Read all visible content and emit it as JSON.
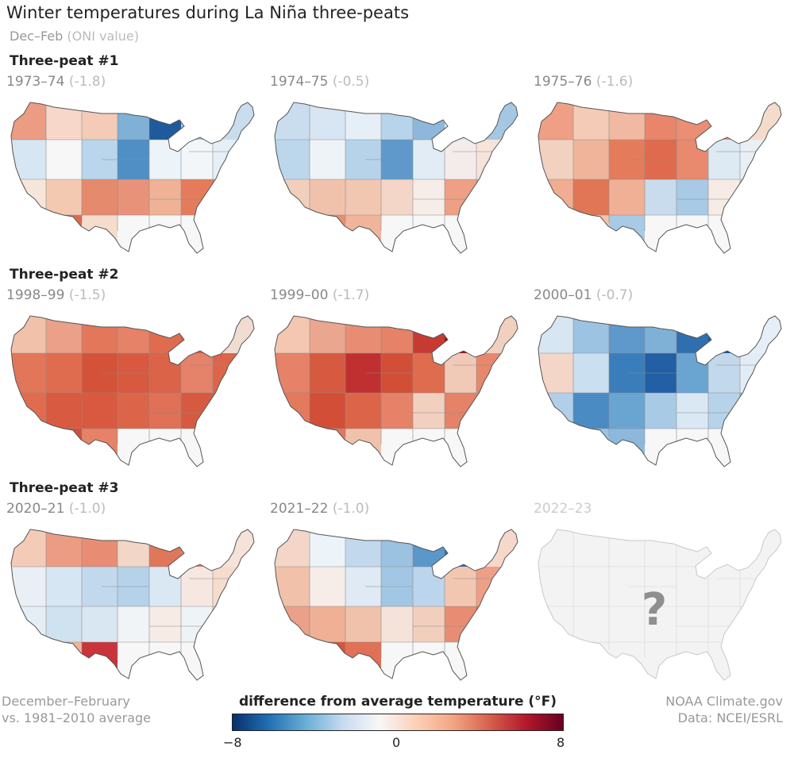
{
  "title": "Winter temperatures during La Niña three-peats",
  "subtitle": {
    "main": "Dec–Feb",
    "paren": "(ONI value)"
  },
  "sections": [
    "Three-peat #1",
    "Three-peat #2",
    "Three-peat #3"
  ],
  "panels": [
    {
      "year": "1973–74",
      "oni": "(-1.8)",
      "colors": [
        "#ec9c82",
        "#f6d7c9",
        "#f3cbb7",
        "#7fb1d7",
        "#1e5a9c",
        "#9fc6e3",
        "#c9ddee",
        "#d6e6f2",
        "#f7f7f7",
        "#b9d6ec",
        "#4f8fc6",
        "#edf4f9",
        "#f2f6f9",
        "#e6eff7",
        "#f6e6da",
        "#f3c9b2",
        "#e68a6d",
        "#e9927a",
        "#f0b297",
        "#e47c5c",
        "#e88a6c",
        "#f1c0a8",
        "#e06a4d",
        "#f5dccd"
      ]
    },
    {
      "year": "1974–75",
      "oni": "(-0.5)",
      "colors": [
        "#c9ddee",
        "#d7e6f2",
        "#e6eff7",
        "#b8d4ea",
        "#8db8dc",
        "#d6e6f2",
        "#a4c8e4",
        "#bcd7ec",
        "#eef3f7",
        "#b6d3ea",
        "#5f99cc",
        "#e1ecf5",
        "#f4ecea",
        "#f6e4da",
        "#f2cfbd",
        "#f1c2ab",
        "#f2c7b1",
        "#f3d6c8",
        "#f6ede8",
        "#ee9f85",
        "#f0ad91",
        "#f2c7b1",
        "#ea8d70",
        "#f0b49b"
      ]
    },
    {
      "year": "1975–76",
      "oni": "(-1.6)",
      "colors": [
        "#ef9f86",
        "#f4cbb6",
        "#f1b9a1",
        "#e8856a",
        "#ea8f74",
        "#e98c71",
        "#f5dbcc",
        "#f3d1c0",
        "#f0b49b",
        "#e47c5c",
        "#e06a4d",
        "#e9896e",
        "#dde9f3",
        "#e8eff5",
        "#f0ad91",
        "#e07656",
        "#f0b096",
        "#c8dcee",
        "#a8cae5",
        "#f6ece5",
        "#f4d2c0",
        "#eef3f7",
        "#f3c4ac",
        "#a8cae5"
      ]
    },
    {
      "year": "1998–99",
      "oni": "(-1.5)",
      "colors": [
        "#f2c1a9",
        "#eba08a",
        "#e3775a",
        "#e58267",
        "#e06c4f",
        "#d85a40",
        "#f1dcd2",
        "#e27659",
        "#e06c4f",
        "#d45238",
        "#d8593f",
        "#db6348",
        "#e5826a",
        "#dc6549",
        "#e06c4f",
        "#d85a40",
        "#d8593f",
        "#dc6549",
        "#e07056",
        "#d65a40",
        "#d6553b",
        "#d8593f",
        "#d24e37",
        "#e58267"
      ]
    },
    {
      "year": "1999–00",
      "oni": "(-1.7)",
      "colors": [
        "#f3c7b1",
        "#eba68f",
        "#e88d73",
        "#e58267",
        "#c73a32",
        "#a3101d",
        "#f2d0c0",
        "#e58267",
        "#d65a40",
        "#c03030",
        "#d24e37",
        "#e06c4f",
        "#f1cab7",
        "#e7886d",
        "#e37a5e",
        "#d24e37",
        "#dc6549",
        "#e58267",
        "#f2d0c0",
        "#e58267",
        "#ec9c82",
        "#f2ccba",
        "#e3775a",
        "#f1c2ab"
      ]
    },
    {
      "year": "2000–01",
      "oni": "(-0.7)",
      "colors": [
        "#d6e6f2",
        "#9dc3e2",
        "#5f99cc",
        "#7fb1d7",
        "#2f6fb0",
        "#1e5a9c",
        "#e6eff7",
        "#f3d6c8",
        "#cadff0",
        "#3a7dbb",
        "#225fa5",
        "#6aa5d2",
        "#c2d9ed",
        "#e1ecf5",
        "#b1cfe8",
        "#4a8bc4",
        "#6aa5d2",
        "#a8cae5",
        "#dae8f4",
        "#b6d3ea",
        "#8dbbdf",
        "#a8cae5",
        "#9dc3e2",
        "#8db8dc"
      ]
    },
    {
      "year": "2020–21",
      "oni": "(-1.0)",
      "colors": [
        "#f3cbb7",
        "#ec9c82",
        "#e88d73",
        "#f2d6c8",
        "#e0765a",
        "#e48068",
        "#f5e3d9",
        "#e9eff5",
        "#d6e6f2",
        "#c2d9ed",
        "#b5d2e9",
        "#dae8f4",
        "#f6e8e0",
        "#f5dccd",
        "#e6eef5",
        "#cfe2f0",
        "#d9e7f3",
        "#f0f4f7",
        "#f6ece5",
        "#eef3f7",
        "#f3d6c8",
        "#f6e4da",
        "#f0b49b",
        "#c8343a"
      ]
    },
    {
      "year": "2021–22",
      "oni": "(-1.0)",
      "colors": [
        "#f3d6c8",
        "#edf4f9",
        "#c2d9ed",
        "#9bc2e1",
        "#5a97cb",
        "#2f6fb0",
        "#f5d8ca",
        "#f2c1a9",
        "#f6ede8",
        "#dfeaf4",
        "#a2c7e4",
        "#bbd6ec",
        "#f2c7b1",
        "#ef9f86",
        "#eba08a",
        "#f0b096",
        "#f1c2ab",
        "#f5e3d9",
        "#f2cfbd",
        "#e88d73",
        "#e47c5c",
        "#e3775a",
        "#d6553b",
        "#e07056"
      ]
    },
    {
      "year": "2022–23",
      "oni": "",
      "future": true,
      "symbol": "?"
    }
  ],
  "legend": {
    "title": "difference from average temperature (°F)",
    "ticks": [
      "−8",
      "0",
      "8"
    ]
  },
  "footer_left": [
    "December–February",
    "vs. 1981–2010 average"
  ],
  "footer_right": [
    "NOAA Climate.gov",
    "Data: NCEI/ESRL"
  ]
}
